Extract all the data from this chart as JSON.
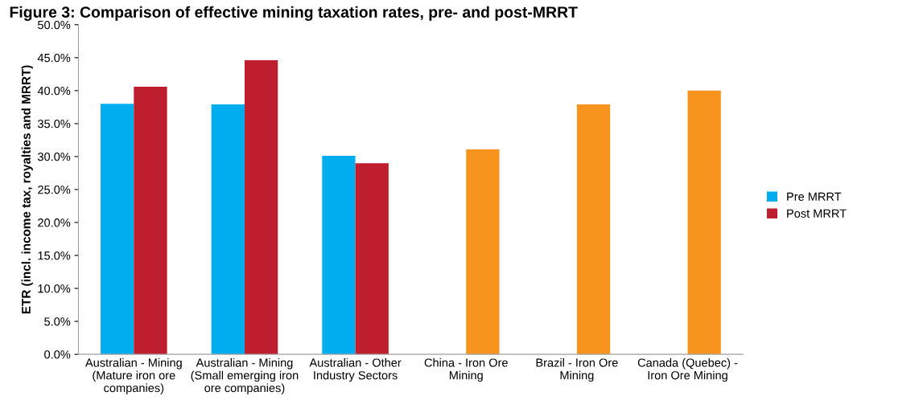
{
  "chart_data": {
    "type": "bar",
    "title": "Figure 3: Comparison of effective mining taxation rates, pre- and post-MRRT",
    "ylabel": "ETR (incl. income tax, royalties and MRRT)",
    "categories": [
      "Australian - Mining\n(Mature iron ore\ncompanies)",
      "Australian - Mining\n(Small emerging iron\nore companies)",
      "Australian - Other\nIndustry Sectors",
      "China - Iron Ore\nMining",
      "Brazil - Iron Ore\nMining",
      "Canada (Quebec) -\nIron Ore Mining"
    ],
    "series": [
      {
        "name": "Pre MRRT",
        "color": "#00aeef",
        "values": [
          38.0,
          37.9,
          30.1,
          null,
          null,
          null
        ]
      },
      {
        "name": "Post MRRT",
        "color": "#be1e2d",
        "colors": [
          "#be1e2d",
          "#be1e2d",
          "#be1e2d",
          "#f7941d",
          "#f7941d",
          "#f7941d"
        ],
        "values": [
          40.6,
          44.6,
          29.0,
          31.1,
          37.9,
          40.0
        ]
      }
    ],
    "ylim": [
      0,
      50
    ],
    "yticks": [
      {
        "value": 0,
        "label": "0.0%"
      },
      {
        "value": 5,
        "label": "5.0%"
      },
      {
        "value": 10,
        "label": "10.0%"
      },
      {
        "value": 15,
        "label": "15.0%"
      },
      {
        "value": 20,
        "label": "20.0%"
      },
      {
        "value": 25,
        "label": "25.0%"
      },
      {
        "value": 30,
        "label": "30.0%"
      },
      {
        "value": 35,
        "label": "35.0%"
      },
      {
        "value": 40,
        "label": "40.0%"
      },
      {
        "value": 45,
        "label": "45.0%"
      },
      {
        "value": 50,
        "label": "50.0%"
      }
    ],
    "grid": false,
    "legend": "right"
  }
}
